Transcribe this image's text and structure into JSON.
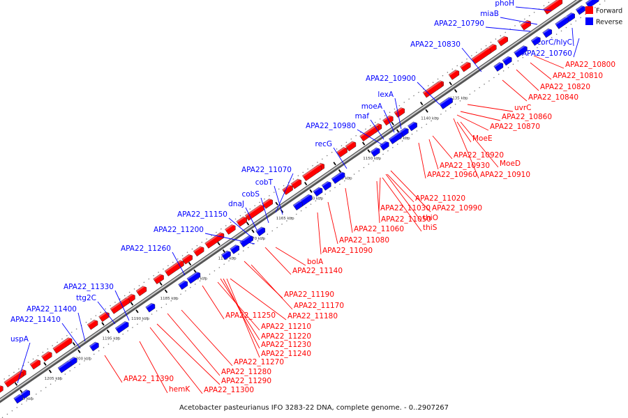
{
  "caption": "Acetobacter pasteurianus IFO 3283-22 DNA, complete genome. - 0..2907267",
  "legend": [
    {
      "label": "Forward",
      "color": "#ff0000"
    },
    {
      "label": "Reverse",
      "color": "#0000ff"
    }
  ],
  "colors": {
    "forward": "#ff0000",
    "reverse": "#0000ff",
    "backbone": "#888888",
    "dark": "#222222"
  },
  "ticks": [
    "1135 kbp",
    "1140 kbp",
    "1145 kbp",
    "1150 kbp",
    "1155 kbp",
    "1160 kbp",
    "1165 kbp",
    "1170 kbp",
    "1175 kbp",
    "1180 kbp",
    "1185 kbp",
    "1190 kbp",
    "1195 kbp",
    "1200 kbp",
    "1205 kbp",
    "1210 kbp"
  ],
  "reverse_labels": [
    "phoH",
    "miaB",
    "APA22_10790",
    "corC/hlyC",
    "APA22_10760",
    "APA22_10830",
    "APA22_10900",
    "lexA",
    "moeA",
    "maf",
    "APA22_10980",
    "recG",
    "APA22_11070",
    "cobT",
    "cobS",
    "dnaJ",
    "APA22_11150",
    "APA22_11200",
    "APA22_11260",
    "APA22_11330",
    "ttg2C",
    "APA22_11400",
    "APA22_11410",
    "uspA"
  ],
  "forward_labels": [
    "APA22_10800",
    "APA22_10810",
    "APA22_10820",
    "APA22_10840",
    "uvrC",
    "APA22_10860",
    "APA22_10870",
    "MoeE",
    "APA22_10920",
    "MoeD",
    "APA22_10930",
    "APA22_10910",
    "APA22_10960",
    "APA22_11020",
    "APA22_10990",
    "APA22_11030",
    "APA22_11050",
    "thiO",
    "thiS",
    "APA22_11060",
    "APA22_11080",
    "APA22_11090",
    "bolA",
    "APA22_11140",
    "APA22_11190",
    "APA22_11170",
    "APA22_11180",
    "APA22_11250",
    "APA22_11210",
    "APA22_11220",
    "APA22_11230",
    "APA22_11240",
    "APA22_11270",
    "APA22_11280",
    "APA22_11290",
    "APA22_11300",
    "APA22_11390",
    "hemK"
  ]
}
